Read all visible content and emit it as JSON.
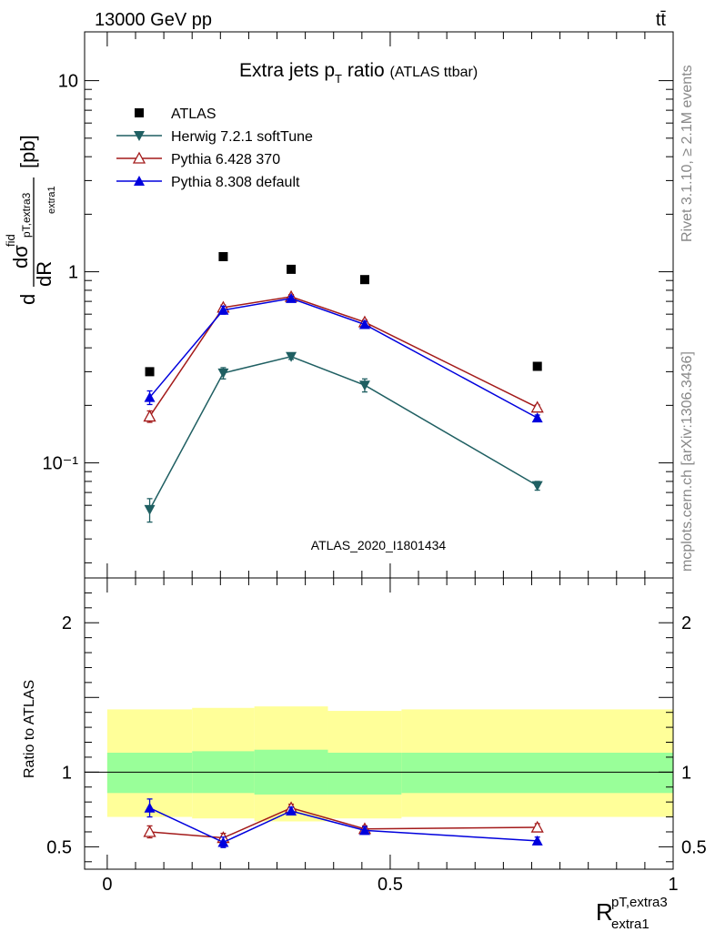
{
  "header": {
    "energy": "13000 GeV pp",
    "process": "tt̄"
  },
  "side_labels": {
    "rivet": "Rivet 3.1.10, ≥ 2.1M events",
    "mcplots": "mcplots.cern.ch [arXiv:1306.3436]"
  },
  "chart_data": [
    {
      "type": "line",
      "title": "Extra jets p_T ratio",
      "subtitle": "(ATLAS ttbar)",
      "watermark": "ATLAS_2020_I1801434",
      "ylabel": "dσ^fid / dR^pT,extra3_extra1 [pb]",
      "yscale": "log",
      "ylim": [
        0.025,
        18
      ],
      "xlim": [
        -0.04,
        1.0
      ],
      "y_ticks": [
        {
          "value": 0.1,
          "label": "10⁻¹"
        },
        {
          "value": 1,
          "label": "1"
        },
        {
          "value": 10,
          "label": "10"
        }
      ],
      "legend_position": "top-left",
      "x": [
        0.075,
        0.205,
        0.325,
        0.455,
        0.76
      ],
      "bins": [
        [
          0.0,
          0.15
        ],
        [
          0.15,
          0.26
        ],
        [
          0.26,
          0.39
        ],
        [
          0.39,
          0.52
        ],
        [
          0.52,
          1.0
        ]
      ],
      "series": [
        {
          "name": "ATLAS",
          "marker": "square",
          "color": "#000000",
          "values": [
            0.3,
            1.2,
            1.03,
            0.91,
            0.32
          ]
        },
        {
          "name": "Herwig 7.2.1 softTune",
          "marker": "triangle-down",
          "color": "#1f5f62",
          "values": [
            0.057,
            0.295,
            0.36,
            0.255,
            0.076
          ],
          "errors": [
            0.008,
            0.02,
            0.012,
            0.02,
            0.004
          ]
        },
        {
          "name": "Pythia 6.428 370",
          "marker": "triangle-up-open",
          "color": "#a31a1a",
          "values": [
            0.175,
            0.65,
            0.74,
            0.545,
            0.195
          ],
          "errors": [
            0.012,
            0.02,
            0.02,
            0.015,
            0.006
          ]
        },
        {
          "name": "Pythia 8.308 default",
          "marker": "triangle-up",
          "color": "#0000dd",
          "values": [
            0.22,
            0.63,
            0.725,
            0.53,
            0.172
          ],
          "errors": [
            0.018,
            0.03,
            0.02,
            0.02,
            0.006
          ]
        }
      ]
    },
    {
      "type": "line",
      "ylabel": "Ratio to ATLAS",
      "xlabel": "R^pT,extra3_extra1",
      "ylim": [
        0.35,
        2.3
      ],
      "xlim": [
        -0.04,
        1.0
      ],
      "y_ticks": [
        {
          "value": 0.5,
          "label": "0.5"
        },
        {
          "value": 1,
          "label": "1"
        },
        {
          "value": 2,
          "label": "2"
        }
      ],
      "x_ticks": [
        {
          "value": 0,
          "label": "0"
        },
        {
          "value": 0.5,
          "label": "0.5"
        },
        {
          "value": 1,
          "label": "1"
        }
      ],
      "bands": {
        "bins": [
          [
            0.0,
            0.15
          ],
          [
            0.15,
            0.26
          ],
          [
            0.26,
            0.39
          ],
          [
            0.39,
            0.52
          ],
          [
            0.52,
            1.0
          ]
        ],
        "outer": [
          [
            0.7,
            1.42
          ],
          [
            0.69,
            1.43
          ],
          [
            0.67,
            1.44
          ],
          [
            0.69,
            1.41
          ],
          [
            0.7,
            1.42
          ]
        ],
        "inner": [
          [
            0.86,
            1.13
          ],
          [
            0.86,
            1.14
          ],
          [
            0.85,
            1.15
          ],
          [
            0.85,
            1.13
          ],
          [
            0.86,
            1.13
          ]
        ],
        "outer_color": "#ffff99",
        "inner_color": "#99ff99"
      },
      "x": [
        0.075,
        0.205,
        0.325,
        0.455,
        0.76
      ],
      "series": [
        {
          "name": "Pythia 6.428 370",
          "marker": "triangle-up-open",
          "color": "#a31a1a",
          "values": [
            0.6,
            0.56,
            0.76,
            0.62,
            0.63
          ],
          "errors": [
            0.04,
            0.03,
            0.025,
            0.02,
            0.025
          ]
        },
        {
          "name": "Pythia 8.308 default",
          "marker": "triangle-up",
          "color": "#0000dd",
          "values": [
            0.76,
            0.53,
            0.74,
            0.61,
            0.54
          ],
          "errors": [
            0.06,
            0.035,
            0.025,
            0.025,
            0.025
          ]
        }
      ]
    }
  ]
}
